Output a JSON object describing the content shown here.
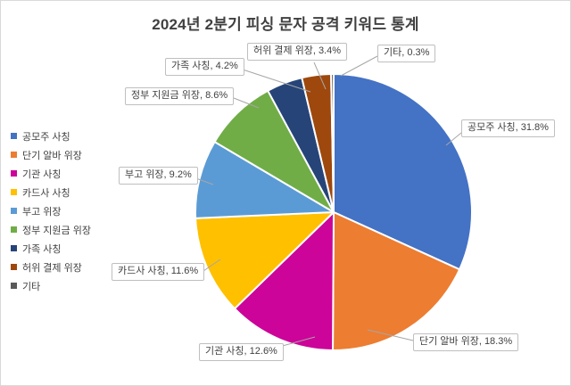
{
  "window": {
    "background": "#FFFFFF",
    "border_color": "#D9D9D9",
    "text_color": "#404040",
    "leader_line_color": "#A6A6A6",
    "label_border_color": "#BFBFBF"
  },
  "chart_data": {
    "type": "pie",
    "title": "2024년 2분기 피싱 문자 공격 키워드 통계",
    "categories": [
      "공모주 사칭",
      "단기 알바 위장",
      "기관 사칭",
      "카드사 사칭",
      "부고 위장",
      "정부 지원금 위장",
      "가족 사칭",
      "허위 결제 위장",
      "기타"
    ],
    "values": [
      31.8,
      18.3,
      12.6,
      11.6,
      9.2,
      8.6,
      4.2,
      3.4,
      0.3
    ],
    "colors": [
      "#4472C4",
      "#ED7D31",
      "#CC0499",
      "#FFC000",
      "#5B9BD5",
      "#70AD47",
      "#264478",
      "#9E480E",
      "#5A5A5A"
    ],
    "unit": "%",
    "label_separator": ", ",
    "start_angle_deg": 0,
    "direction": "clockwise",
    "legend_position": "left",
    "grid": false,
    "data_labels": [
      "공모주 사칭, 31.8%",
      "단기 알바 위장, 18.3%",
      "기관 사칭, 12.6%",
      "카드사 사칭, 11.6%",
      "부고 위장, 9.2%",
      "정부 지원금 위장, 8.6%",
      "가족 사칭, 4.2%",
      "허위 결제 위장, 3.4%",
      "기타, 0.3%"
    ]
  }
}
